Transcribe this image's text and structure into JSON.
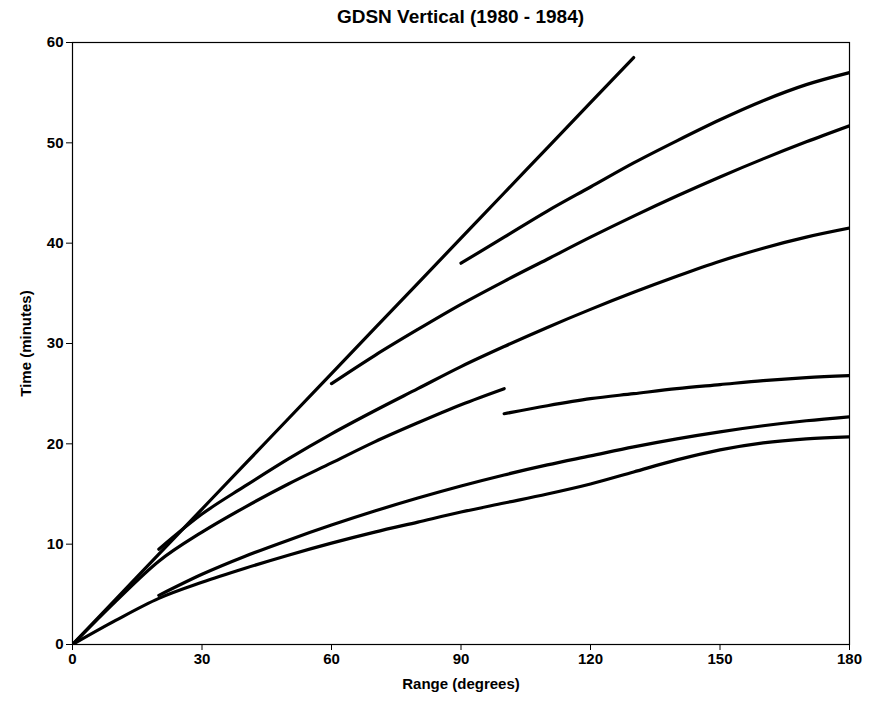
{
  "chart_data": {
    "type": "line",
    "title": "GDSN Vertical (1980 - 1984)",
    "x_label": "Range (degrees)",
    "y_label": "Time (minutes)",
    "x": [
      0,
      10,
      20,
      30,
      40,
      50,
      60,
      70,
      80,
      90,
      100,
      110,
      120,
      130,
      140,
      150,
      160,
      170,
      180
    ],
    "series": [
      {
        "color": "#000000",
        "line_style": "solid",
        "values": [
          0,
          2.4,
          4.6,
          6.2,
          7.6,
          8.9,
          10.1,
          11.2,
          12.2,
          13.2,
          14.1,
          15.0,
          16.0,
          17.2,
          18.4,
          19.4,
          20.1,
          20.5,
          20.7
        ]
      },
      {
        "color": "#000000",
        "line_style": "solid",
        "values": [
          null,
          null,
          4.9,
          7.0,
          8.8,
          10.4,
          11.9,
          13.3,
          14.6,
          15.8,
          16.9,
          17.9,
          18.8,
          19.7,
          20.5,
          21.2,
          21.8,
          22.3,
          22.7
        ]
      },
      {
        "color": "#000000",
        "line_style": "solid",
        "values": [
          0,
          4.3,
          8.3,
          11.2,
          13.7,
          16.0,
          18.1,
          20.2,
          22.1,
          23.9,
          25.5,
          null,
          null,
          null,
          null,
          null,
          null,
          null,
          null
        ]
      },
      {
        "color": "#000000",
        "line_style": "solid",
        "values": [
          null,
          null,
          null,
          null,
          null,
          null,
          null,
          null,
          null,
          null,
          23.0,
          23.8,
          24.5,
          25.0,
          25.5,
          25.9,
          26.3,
          26.6,
          26.8
        ]
      },
      {
        "color": "#000000",
        "line_style": "solid",
        "values": [
          null,
          null,
          9.5,
          13.0,
          15.8,
          18.5,
          21.0,
          23.3,
          25.5,
          27.7,
          29.7,
          31.6,
          33.4,
          35.1,
          36.7,
          38.2,
          39.5,
          40.6,
          41.5
        ]
      },
      {
        "color": "#000000",
        "line_style": "solid",
        "values": [
          null,
          null,
          null,
          null,
          null,
          null,
          26.0,
          28.8,
          31.4,
          33.9,
          36.2,
          38.4,
          40.6,
          42.7,
          44.7,
          46.6,
          48.4,
          50.1,
          51.7
        ]
      },
      {
        "color": "#000000",
        "line_style": "solid",
        "values": [
          null,
          null,
          null,
          null,
          null,
          null,
          null,
          null,
          null,
          38.0,
          40.6,
          43.2,
          45.6,
          48.0,
          50.2,
          52.3,
          54.2,
          55.8,
          57.0
        ]
      },
      {
        "color": "#000000",
        "line_style": "solid",
        "values": [
          0,
          4.5,
          9.0,
          13.5,
          18.0,
          22.5,
          27.0,
          31.5,
          36.0,
          40.5,
          45.0,
          49.5,
          54.0,
          58.5,
          null,
          null,
          null,
          null,
          null
        ]
      }
    ],
    "xlim": [
      0,
      180
    ],
    "xticks": [
      0,
      30,
      60,
      90,
      120,
      150,
      180
    ],
    "ylim": [
      0,
      60
    ],
    "yticks": [
      0,
      10,
      20,
      30,
      40,
      50,
      60
    ],
    "grid": false
  }
}
